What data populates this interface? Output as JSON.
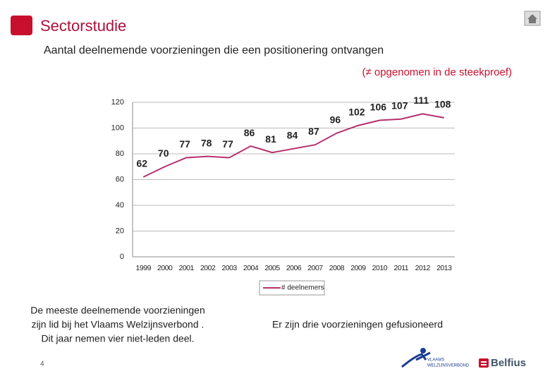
{
  "header": {
    "title": "Sectorstudie",
    "subtitle": "Aantal deelnemende voorzieningen die een positionering ontvangen",
    "note": "(≠ opgenomen in de steekproef)"
  },
  "chart_data": {
    "type": "line",
    "categories": [
      "1999",
      "2000",
      "2001",
      "2002",
      "2003",
      "2004",
      "2005",
      "2006",
      "2007",
      "2008",
      "2009",
      "2010",
      "2011",
      "2012",
      "2013"
    ],
    "series": [
      {
        "name": "# deelnemers",
        "color": "#b5306e",
        "values": [
          62,
          70,
          77,
          78,
          77,
          86,
          81,
          84,
          87,
          96,
          102,
          106,
          107,
          111,
          108
        ]
      }
    ],
    "ylim": [
      0,
      120
    ],
    "yticks": [
      0,
      20,
      40,
      60,
      80,
      100,
      120
    ],
    "grid": true,
    "legend": "bottom"
  },
  "notes": {
    "left": [
      "De meeste deelnemende voorzieningen",
      "zijn  lid bij het Vlaams Welzijnsverbond .",
      "Dit jaar nemen vier niet-leden deel."
    ],
    "right": "Er zijn drie voorzieningen gefusioneerd"
  },
  "footer": {
    "page": "4",
    "logo_left": [
      "VLAAMS",
      "WELZIJNSVERBOND"
    ],
    "logo_right": "Belfius"
  }
}
